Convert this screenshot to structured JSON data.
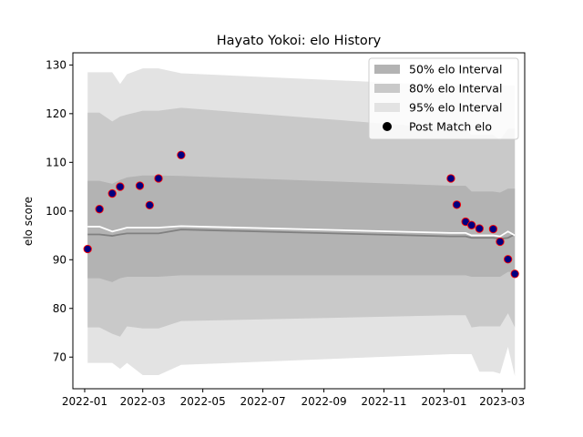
{
  "chart_data": {
    "type": "scatter",
    "title": "Hayato Yokoi: elo History",
    "xlabel": "",
    "ylabel": "elo score",
    "xlim": [
      "2021-12-20",
      "2023-03-24"
    ],
    "ylim": [
      63.5,
      132.5
    ],
    "x_ticks": [
      {
        "date": "2022-01-01",
        "label": "2022-01"
      },
      {
        "date": "2022-03-01",
        "label": "2022-03"
      },
      {
        "date": "2022-05-01",
        "label": "2022-05"
      },
      {
        "date": "2022-07-01",
        "label": "2022-07"
      },
      {
        "date": "2022-09-01",
        "label": "2022-09"
      },
      {
        "date": "2022-11-01",
        "label": "2022-11"
      },
      {
        "date": "2023-01-01",
        "label": "2023-01"
      },
      {
        "date": "2023-03-01",
        "label": "2023-03"
      }
    ],
    "y_ticks": [
      70,
      80,
      90,
      100,
      110,
      120,
      130
    ],
    "grid": false,
    "legend": {
      "placement": "top-right",
      "entries": [
        {
          "label": "50% elo Interval",
          "color": "#b3b3b3"
        },
        {
          "label": "80% elo Interval",
          "color": "#c9c9c9"
        },
        {
          "label": "95% elo Interval",
          "color": "#e3e3e3"
        },
        {
          "label": "Post Match elo",
          "color": "#000000"
        }
      ]
    },
    "band_x": [
      "2022-01-04",
      "2022-01-16",
      "2022-01-29",
      "2022-02-06",
      "2022-02-13",
      "2022-03-01",
      "2022-03-08",
      "2022-03-17",
      "2022-04-09",
      "2023-01-08",
      "2023-01-14",
      "2023-01-23",
      "2023-01-29",
      "2023-02-06",
      "2023-02-20",
      "2023-02-27",
      "2023-03-07",
      "2023-03-14"
    ],
    "mean": [
      95.2,
      95.2,
      94.9,
      95.2,
      95.4,
      95.4,
      95.4,
      95.4,
      96.2,
      94.8,
      94.8,
      94.8,
      94.5,
      94.5,
      94.5,
      94.3,
      94.5,
      95.2
    ],
    "median": [
      96.8,
      96.8,
      95.8,
      96.2,
      96.6,
      96.6,
      96.6,
      96.6,
      96.9,
      95.5,
      95.5,
      95.5,
      95.0,
      95.0,
      95.0,
      94.8,
      95.8,
      95.0
    ],
    "band50_upper": [
      106.2,
      106.2,
      105.6,
      106.4,
      106.9,
      107.3,
      107.3,
      107.3,
      107.2,
      105.2,
      105.2,
      105.2,
      104.0,
      104.0,
      104.0,
      103.8,
      104.6,
      104.6
    ],
    "band50_lower": [
      86.2,
      86.2,
      85.4,
      86.2,
      86.5,
      86.5,
      86.5,
      86.5,
      86.8,
      86.8,
      86.8,
      86.8,
      86.5,
      86.5,
      86.5,
      86.5,
      87.5,
      87.5
    ],
    "band80_upper": [
      120.2,
      120.2,
      118.4,
      119.4,
      119.8,
      120.6,
      120.6,
      120.6,
      121.2,
      116.9,
      116.9,
      116.9,
      115.6,
      115.6,
      115.6,
      114.6,
      116.9,
      116.9
    ],
    "band80_lower": [
      76.1,
      76.1,
      74.8,
      74.2,
      76.3,
      75.9,
      75.9,
      75.9,
      77.4,
      78.6,
      78.6,
      78.6,
      76.1,
      76.3,
      76.3,
      76.3,
      79.0,
      76.1
    ],
    "band95_upper": [
      128.5,
      128.5,
      128.5,
      126.1,
      128.1,
      129.3,
      129.3,
      129.3,
      128.3,
      125.8,
      125.8,
      125.8,
      125.8,
      125.8,
      125.8,
      125.8,
      125.8,
      125.8
    ],
    "band95_lower": [
      68.8,
      68.8,
      68.8,
      67.6,
      68.8,
      66.3,
      66.3,
      66.3,
      68.4,
      70.6,
      70.6,
      70.6,
      70.6,
      67.0,
      67.0,
      66.6,
      72.1,
      66.1
    ],
    "points": {
      "name": "Post Match elo",
      "x": [
        "2022-01-04",
        "2022-01-16",
        "2022-01-29",
        "2022-02-06",
        "2022-02-26",
        "2022-03-08",
        "2022-03-17",
        "2022-04-09",
        "2023-01-08",
        "2023-01-14",
        "2023-01-23",
        "2023-01-29",
        "2023-02-06",
        "2023-02-20",
        "2023-02-27",
        "2023-03-07",
        "2023-03-14"
      ],
      "y": [
        92.2,
        100.4,
        103.6,
        105.0,
        105.2,
        101.2,
        106.7,
        111.5,
        106.7,
        101.3,
        97.8,
        97.1,
        96.4,
        96.3,
        93.7,
        90.1,
        87.1
      ]
    },
    "colors": {
      "band50": "#b3b3b3",
      "band80": "#c9c9c9",
      "band95": "#e3e3e3",
      "mean_line": "#808080",
      "median_line": "#ffffff",
      "point_face": "#000080",
      "point_edge": "#ff0000"
    }
  }
}
